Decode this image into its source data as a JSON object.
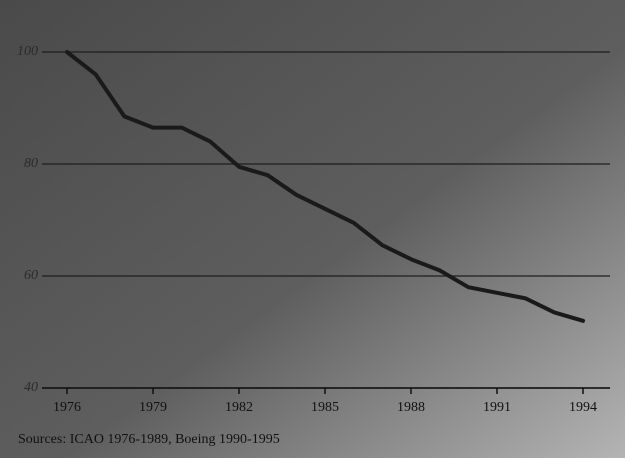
{
  "chart_data": {
    "type": "line",
    "x": [
      1976,
      1977,
      1978,
      1979,
      1980,
      1981,
      1982,
      1983,
      1984,
      1985,
      1986,
      1987,
      1988,
      1989,
      1990,
      1991,
      1992,
      1993,
      1994
    ],
    "values": [
      100,
      96,
      88.5,
      86.5,
      86.5,
      84,
      79.5,
      78,
      74.5,
      72,
      69.5,
      65.5,
      63,
      61,
      58,
      57,
      56,
      53.5,
      52
    ],
    "color": "#1a1a1a",
    "xlim": [
      1976,
      1994
    ],
    "xticks": [
      1976,
      1979,
      1982,
      1985,
      1988,
      1991,
      1994
    ],
    "ylim": [
      40,
      100
    ],
    "yticks": [
      40,
      60,
      80,
      100
    ],
    "grid": true,
    "source": "Sources: ICAO 1976-1989, Boeing 1990-1995"
  }
}
